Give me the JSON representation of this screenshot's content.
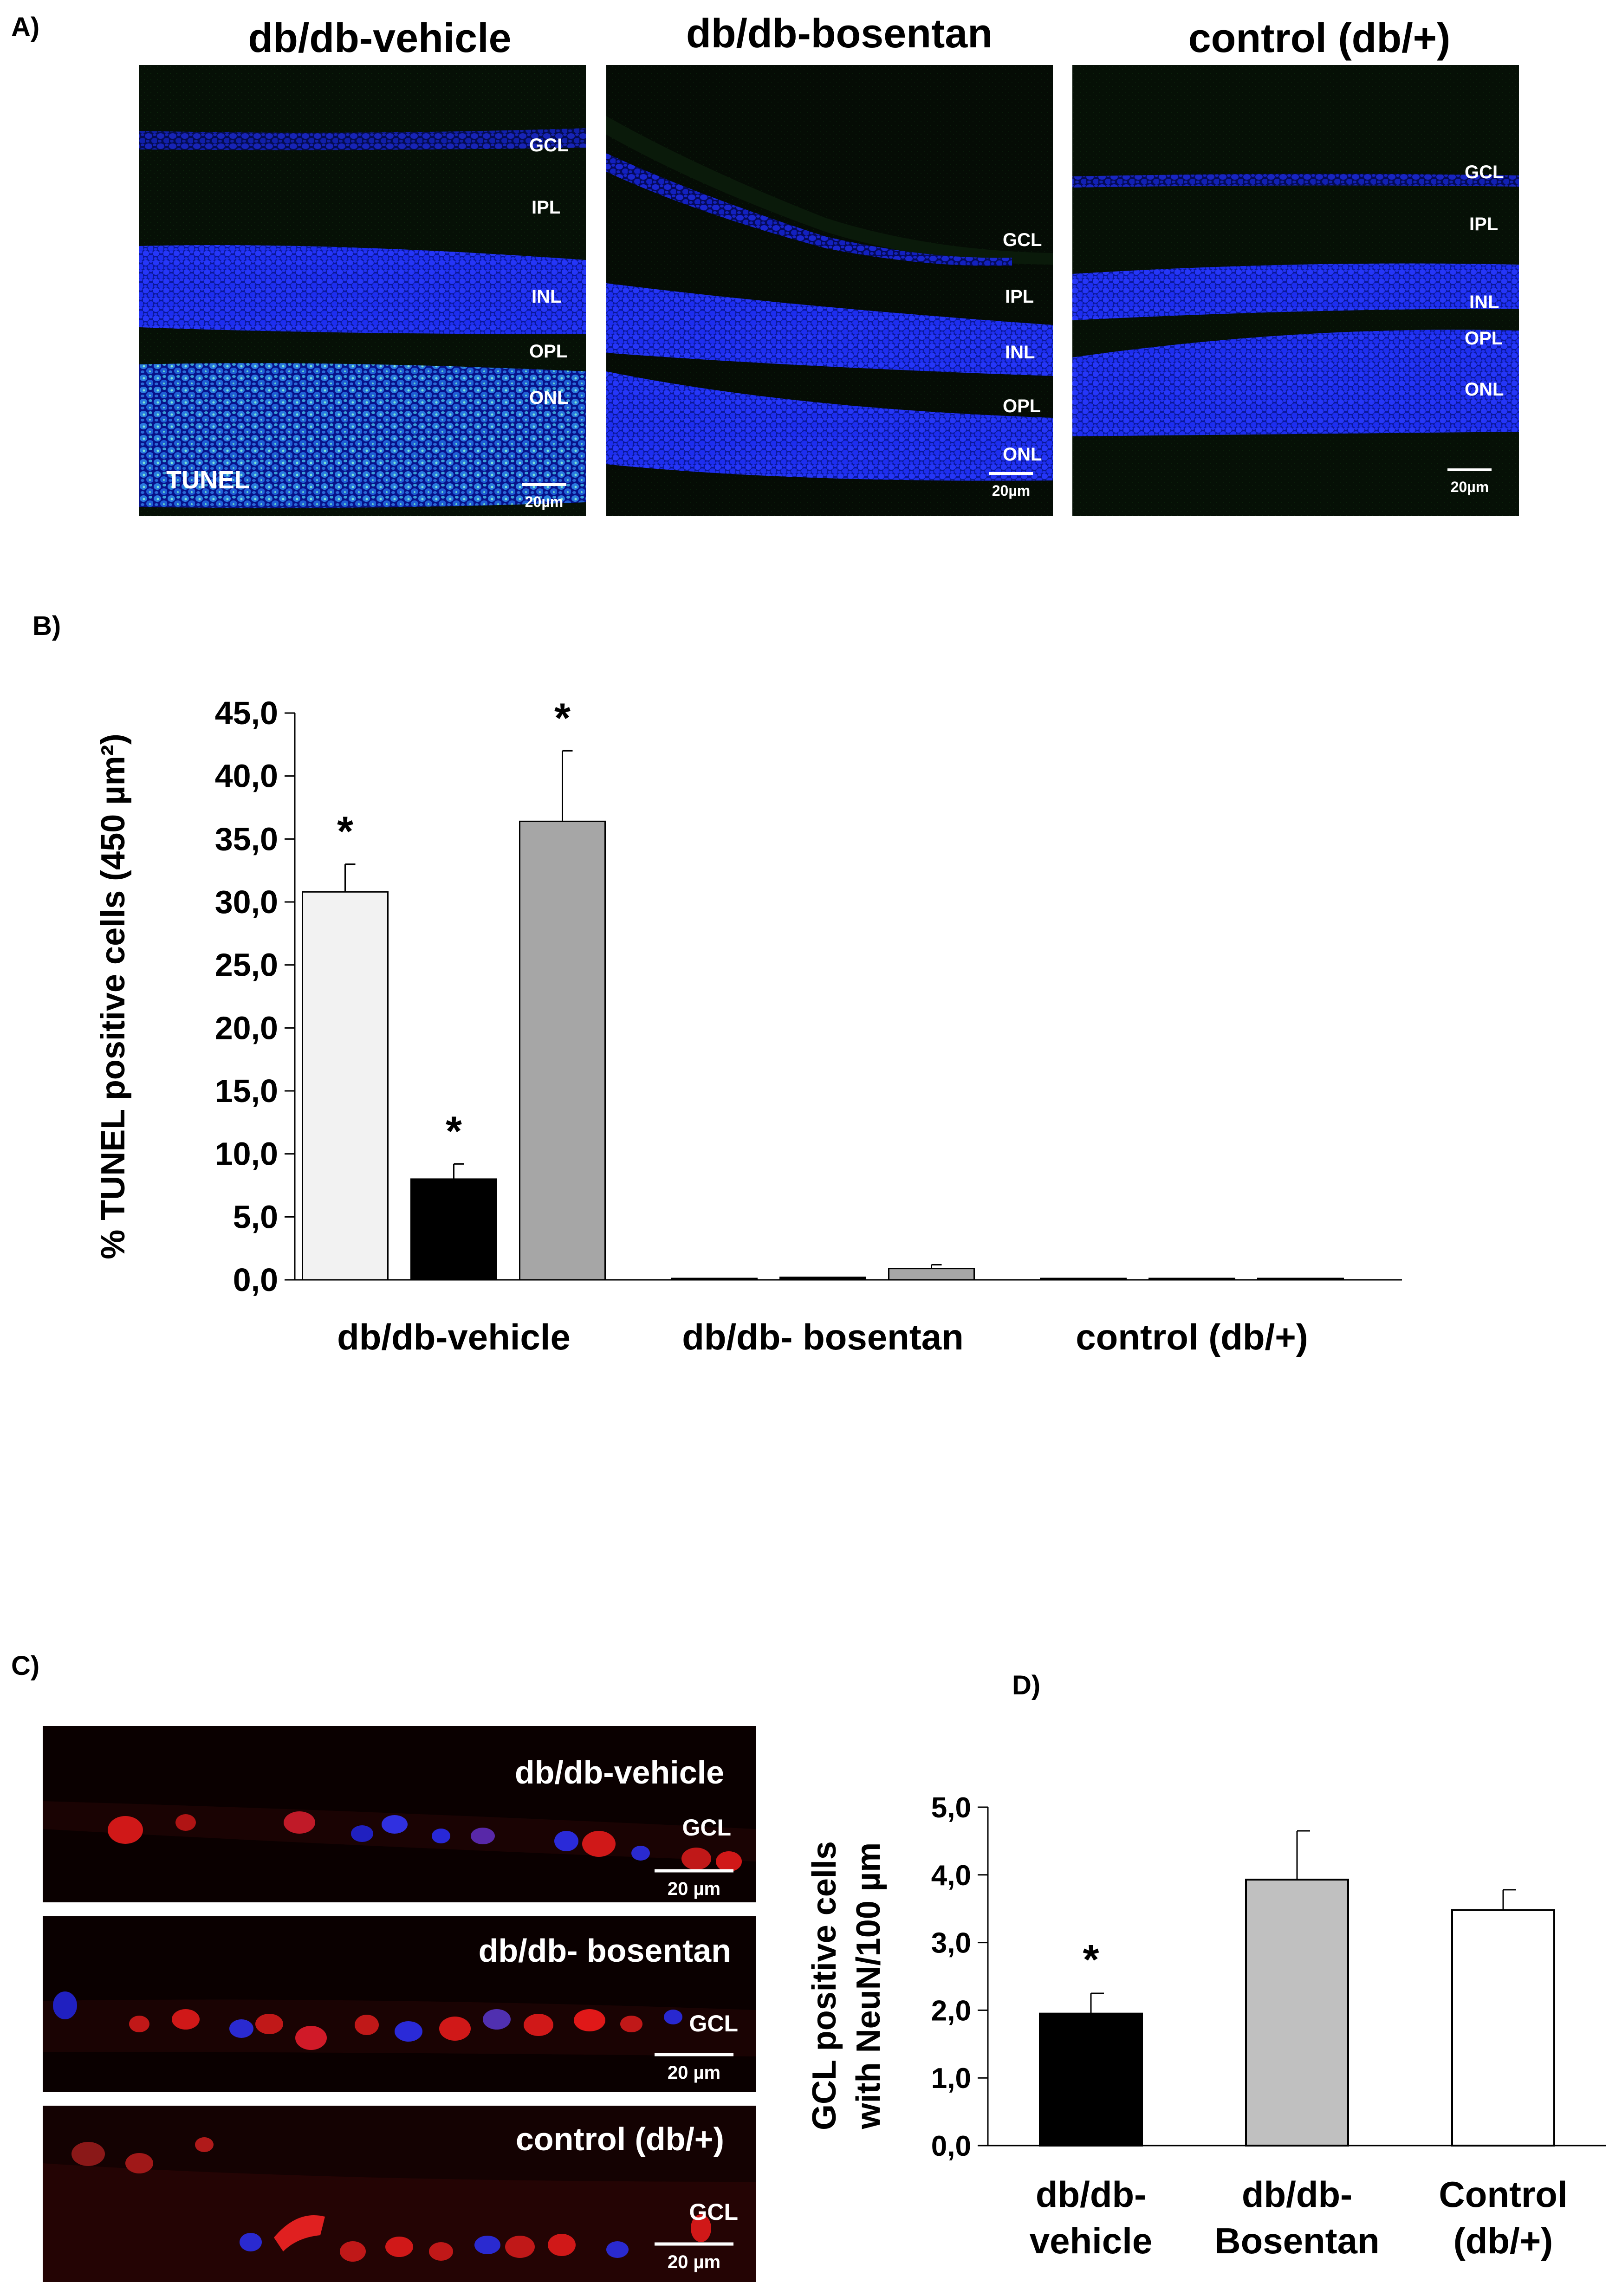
{
  "panelA": {
    "label": "A)",
    "panels": [
      {
        "title": "db/db-vehicle",
        "layers": [
          "GCL",
          "IPL",
          "INL",
          "OPL",
          "ONL"
        ],
        "stain": "TUNEL",
        "scale": "20µm"
      },
      {
        "title": "db/db-bosentan",
        "layers": [
          "GCL",
          "IPL",
          "INL",
          "OPL",
          "ONL"
        ],
        "stain": "",
        "scale": "20µm"
      },
      {
        "title": "control (db/+)",
        "layers": [
          "GCL",
          "IPL",
          "INL",
          "OPL",
          "ONL"
        ],
        "stain": "",
        "scale": "20µm"
      }
    ]
  },
  "panelB": {
    "label": "B)"
  },
  "panelC": {
    "label": "C)",
    "panels": [
      {
        "title": "db/db-vehicle",
        "layer": "GCL",
        "scale": "20 µm"
      },
      {
        "title": "db/db- bosentan",
        "layer": "GCL",
        "scale": "20 µm"
      },
      {
        "title": "control (db/+)",
        "layer": "GCL",
        "scale": "20 µm"
      }
    ]
  },
  "panelD": {
    "label": "D)"
  },
  "chart_data": [
    {
      "type": "bar",
      "panel": "B",
      "ylabel": "% TUNEL positive cells (450 µm²)",
      "ylim": [
        0,
        45
      ],
      "yticks": [
        "0,0",
        "5,0",
        "10,0",
        "15,0",
        "20,0",
        "25,0",
        "30,0",
        "35,0",
        "40,0",
        "45,0"
      ],
      "categories": [
        "db/db-vehicle",
        "db/db- bosentan",
        "control (db/+)"
      ],
      "series": [
        {
          "values": [
            30.8,
            0.1,
            0.1
          ],
          "errors": [
            2.2,
            0.1,
            0.1
          ],
          "color": "#f2f2f2",
          "significant": [
            true,
            false,
            false
          ]
        },
        {
          "values": [
            8.0,
            0.2,
            0.1
          ],
          "errors": [
            1.2,
            0.1,
            0.1
          ],
          "color": "#000000",
          "significant": [
            true,
            false,
            false
          ]
        },
        {
          "values": [
            36.4,
            0.9,
            0.1
          ],
          "errors": [
            5.6,
            0.3,
            0.1
          ],
          "color": "#a6a6a6",
          "significant": [
            true,
            false,
            false
          ]
        }
      ],
      "significance_mark": "*",
      "grid": false
    },
    {
      "type": "bar",
      "panel": "D",
      "ylabel": "GCL positive cells with NeuN/100 µm",
      "ylabel_lines": [
        "GCL positive cells",
        "with NeuN/100 µm"
      ],
      "ylim": [
        0,
        5
      ],
      "yticks": [
        "0,0",
        "1,0",
        "2,0",
        "3,0",
        "4,0",
        "5,0"
      ],
      "categories": [
        [
          "db/db-",
          "vehicle"
        ],
        [
          "db/db-",
          "Bosentan"
        ],
        [
          "Control",
          "(db/+)"
        ]
      ],
      "values": [
        1.95,
        3.93,
        3.48
      ],
      "errors": [
        0.3,
        0.72,
        0.3
      ],
      "colors": [
        "#000000",
        "#c0c0c0",
        "#ffffff"
      ],
      "significant": [
        true,
        false,
        false
      ],
      "significance_mark": "*",
      "grid": false
    }
  ]
}
